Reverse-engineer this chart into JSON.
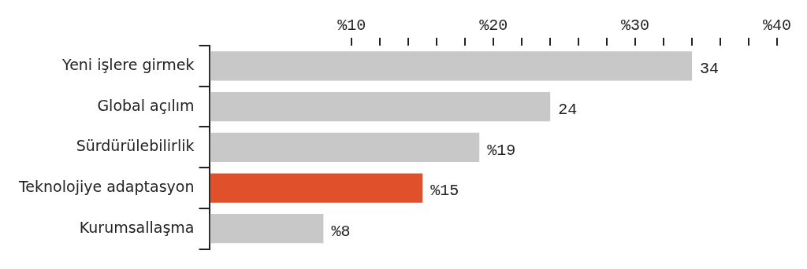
{
  "chart_data": {
    "type": "bar",
    "orientation": "horizontal",
    "categories": [
      "Yeni işlere girmek",
      "Global açılım",
      "Sürdürülebilirlik",
      "Teknolojiye adaptasyon",
      "Kurumsallaşma"
    ],
    "values": [
      34,
      24,
      19,
      15,
      8
    ],
    "colors": [
      "#c8c8c8",
      "#c8c8c8",
      "#c8c8c8",
      "#e0502a",
      "#c8c8c8"
    ],
    "value_labels": [
      "34",
      "24",
      "%19",
      "%15",
      "%8"
    ],
    "xlim": [
      0,
      40
    ],
    "xticks": [
      {
        "value": 10,
        "label": "%10"
      },
      {
        "value": 12,
        "label": null
      },
      {
        "value": 14,
        "label": null
      },
      {
        "value": 16,
        "label": null
      },
      {
        "value": 18,
        "label": null
      },
      {
        "value": 20,
        "label": "%20"
      },
      {
        "value": 22,
        "label": null
      },
      {
        "value": 24,
        "label": null
      },
      {
        "value": 26,
        "label": null
      },
      {
        "value": 28,
        "label": null
      },
      {
        "value": 30,
        "label": "%30"
      },
      {
        "value": 32,
        "label": null
      },
      {
        "value": 34,
        "label": null
      },
      {
        "value": 36,
        "label": null
      },
      {
        "value": 38,
        "label": null
      },
      {
        "value": 40,
        "label": "%40"
      }
    ],
    "grid": false,
    "legend": false
  }
}
